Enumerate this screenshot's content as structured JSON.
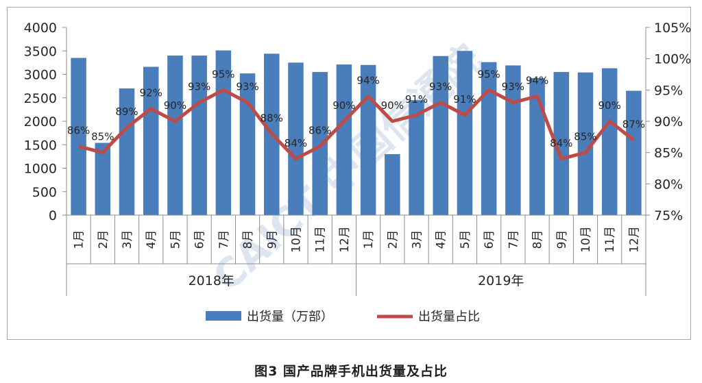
{
  "chart_data": {
    "type": "bar",
    "years": [
      "2018年",
      "2019年"
    ],
    "months": [
      "1月",
      "2月",
      "3月",
      "4月",
      "5月",
      "6月",
      "7月",
      "8月",
      "9月",
      "10月",
      "11月",
      "12月"
    ],
    "series": [
      {
        "name": "出货量（万部）",
        "chart": "bar",
        "axis": "left",
        "color": "#4a7ebb",
        "values": [
          3350,
          1540,
          2700,
          3160,
          3400,
          3400,
          3510,
          3020,
          3440,
          3250,
          3050,
          3210,
          3200,
          1300,
          2450,
          3390,
          3500,
          3260,
          3190,
          2920,
          3050,
          3040,
          3130,
          2650
        ]
      },
      {
        "name": "出货量占比",
        "chart": "line",
        "axis": "right",
        "color": "#be4b48",
        "values": [
          86,
          85,
          89,
          92,
          90,
          93,
          95,
          93,
          88,
          84,
          86,
          90,
          94,
          90,
          91,
          93,
          91,
          95,
          93,
          94,
          84,
          85,
          90,
          87
        ],
        "labels": [
          "86%",
          "85%",
          "89%",
          "92%",
          "90%",
          "93%",
          "95%",
          "93%",
          "88%",
          "84%",
          "86%",
          "90%",
          "94%",
          "90%",
          "91%",
          "93%",
          "91%",
          "95%",
          "93%",
          "94%",
          "84%",
          "85%",
          "90%",
          "87%"
        ]
      }
    ],
    "y_left": {
      "min": 0,
      "max": 4000,
      "step": 500,
      "ticks": [
        "0",
        "500",
        "1000",
        "1500",
        "2000",
        "2500",
        "3000",
        "3500",
        "4000"
      ]
    },
    "y_right": {
      "min": 75,
      "max": 105,
      "step": 5,
      "ticks": [
        "75%",
        "80%",
        "85%",
        "90%",
        "95%",
        "100%",
        "105%"
      ]
    },
    "grid": false,
    "legend_position": "bottom"
  },
  "caption": "图3   国产品牌手机出货量及占比",
  "watermark": "CAICT 中国信通院"
}
